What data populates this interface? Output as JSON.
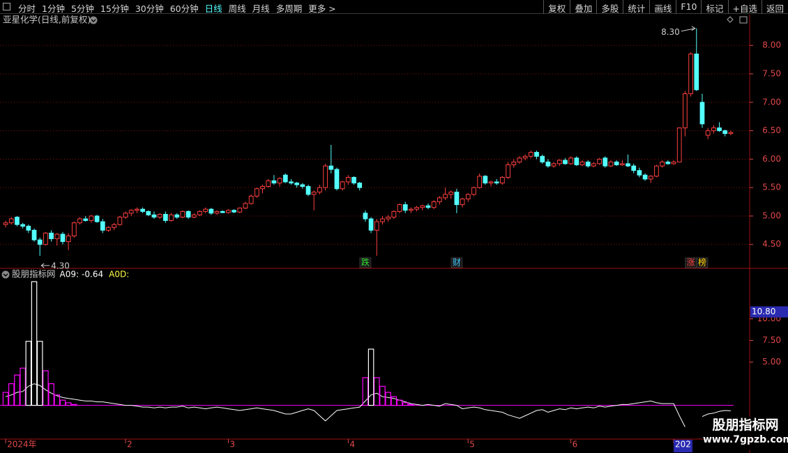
{
  "toolbar": {
    "left": [
      "分时",
      "1分钟",
      "5分钟",
      "15分钟",
      "30分钟",
      "60分钟",
      "日线",
      "周线",
      "月线",
      "多周期",
      "更多 >"
    ],
    "active": "日线",
    "right": [
      "复权",
      "叠加",
      "多股",
      "统计",
      "画线",
      "F10",
      "标记",
      "+自选",
      "返回"
    ]
  },
  "watermark": {
    "title": "股朋指标网",
    "url": "www.7gpzb.com"
  },
  "chart_data": [
    {
      "type": "candlestick",
      "title": "亚星化学(日线,前复权)",
      "up_color": "#ff4040",
      "down_color": "#54ffff",
      "categories": [
        "2024年",
        null,
        null,
        null,
        null,
        null,
        null,
        null,
        null,
        null,
        null,
        null,
        null,
        null,
        null,
        null,
        null,
        null,
        null,
        null,
        null,
        "2",
        null,
        null,
        null,
        null,
        null,
        null,
        null,
        null,
        null,
        null,
        null,
        null,
        null,
        null,
        null,
        null,
        null,
        "3",
        null,
        null,
        null,
        null,
        null,
        null,
        null,
        null,
        null,
        null,
        null,
        null,
        null,
        null,
        null,
        null,
        null,
        null,
        null,
        null,
        "4",
        null,
        null,
        null,
        null,
        null,
        null,
        null,
        null,
        null,
        null,
        null,
        null,
        null,
        null,
        null,
        null,
        null,
        null,
        null,
        null,
        "5",
        null,
        null,
        null,
        null,
        null,
        null,
        null,
        null,
        null,
        null,
        null,
        null,
        null,
        null,
        null,
        null,
        null,
        "6",
        null,
        null,
        null,
        null,
        null,
        null,
        null,
        null,
        null,
        null,
        null,
        null,
        null,
        null,
        null,
        null,
        null,
        "202",
        null,
        null,
        null,
        null,
        null,
        null,
        null,
        null,
        null,
        null
      ],
      "open": [
        4.85,
        4.88,
        4.98,
        4.85,
        4.82,
        4.75,
        4.58,
        4.5,
        4.7,
        4.6,
        4.68,
        4.55,
        4.65,
        4.88,
        4.95,
        4.92,
        5.0,
        4.9,
        4.75,
        4.8,
        4.85,
        4.98,
        5.05,
        5.1,
        5.12,
        5.08,
        5.02,
        4.98,
        5.03,
        4.92,
        5.02,
        4.98,
        5.08,
        4.98,
        5.02,
        5.08,
        5.12,
        5.05,
        5.08,
        5.06,
        5.1,
        5.07,
        5.14,
        5.22,
        5.35,
        5.48,
        5.52,
        5.62,
        5.58,
        5.72,
        5.6,
        5.58,
        5.55,
        5.52,
        5.38,
        5.42,
        5.5,
        5.88,
        5.82,
        5.48,
        5.6,
        5.68,
        5.58,
        5.05,
        4.95,
        4.75,
        4.9,
        4.95,
        4.98,
        5.08,
        5.2,
        5.1,
        5.12,
        5.15,
        5.18,
        5.15,
        5.25,
        5.32,
        5.38,
        5.42,
        5.2,
        5.3,
        5.38,
        5.5,
        5.7,
        5.58,
        5.6,
        5.58,
        5.68,
        5.9,
        5.95,
        6.02,
        6.05,
        6.12,
        6.05,
        5.95,
        5.88,
        5.92,
        5.98,
        5.92,
        6.02,
        5.9,
        5.95,
        5.88,
        5.92,
        6.02,
        5.88,
        5.95,
        5.9,
        5.92,
        5.88,
        5.8,
        5.72,
        5.65,
        5.7,
        5.88,
        5.95,
        5.92,
        5.95,
        6.55,
        7.15,
        7.85,
        7.0,
        6.42,
        6.5,
        6.55,
        6.5,
        6.45
      ],
      "high": [
        4.92,
        4.98,
        5.0,
        4.88,
        4.85,
        4.78,
        4.62,
        4.72,
        4.75,
        4.7,
        4.72,
        4.7,
        4.9,
        4.98,
        5.0,
        5.02,
        5.02,
        4.95,
        4.82,
        4.88,
        5.0,
        5.08,
        5.12,
        5.15,
        5.15,
        5.1,
        5.08,
        5.05,
        5.08,
        5.05,
        5.05,
        5.1,
        5.1,
        5.05,
        5.1,
        5.15,
        5.14,
        5.1,
        5.1,
        5.12,
        5.12,
        5.15,
        5.25,
        5.38,
        5.5,
        5.55,
        5.65,
        5.72,
        5.68,
        5.75,
        5.65,
        5.6,
        5.58,
        5.55,
        5.45,
        5.55,
        5.92,
        6.25,
        5.85,
        5.62,
        5.72,
        5.7,
        5.6,
        5.1,
        4.98,
        4.95,
        5.0,
        5.02,
        5.1,
        5.22,
        5.25,
        5.15,
        5.18,
        5.2,
        5.22,
        5.28,
        5.35,
        5.5,
        5.45,
        5.48,
        5.32,
        5.4,
        5.52,
        5.75,
        5.72,
        5.62,
        5.65,
        5.7,
        5.95,
        6.0,
        6.05,
        6.08,
        6.15,
        6.15,
        6.08,
        6.0,
        5.95,
        6.0,
        6.02,
        6.05,
        6.05,
        5.98,
        5.98,
        5.95,
        6.02,
        6.05,
        5.98,
        5.98,
        5.98,
        6.08,
        5.92,
        5.85,
        5.75,
        5.72,
        5.9,
        5.98,
        5.98,
        5.98,
        6.55,
        7.2,
        7.88,
        8.3,
        7.15,
        6.55,
        6.6,
        6.65,
        6.52,
        6.5
      ],
      "low": [
        4.8,
        4.85,
        4.82,
        4.78,
        4.7,
        4.55,
        4.3,
        4.48,
        4.55,
        4.48,
        4.5,
        4.4,
        4.62,
        4.85,
        4.9,
        4.88,
        4.88,
        4.7,
        4.72,
        4.75,
        4.83,
        4.95,
        5.0,
        5.05,
        5.05,
        5.0,
        4.95,
        4.95,
        4.88,
        4.9,
        4.95,
        4.96,
        4.95,
        4.96,
        5.0,
        5.05,
        5.02,
        5.02,
        5.05,
        5.04,
        5.05,
        5.05,
        5.12,
        5.2,
        5.32,
        5.4,
        5.5,
        5.55,
        5.52,
        5.58,
        5.55,
        5.5,
        5.48,
        5.35,
        5.1,
        5.38,
        5.45,
        5.75,
        5.45,
        5.45,
        5.55,
        5.55,
        5.45,
        4.9,
        4.7,
        4.3,
        4.85,
        4.9,
        4.95,
        5.05,
        5.05,
        5.05,
        5.08,
        5.1,
        5.12,
        5.12,
        5.2,
        5.28,
        5.3,
        5.05,
        5.15,
        5.25,
        5.35,
        5.48,
        5.55,
        5.52,
        5.55,
        5.55,
        5.65,
        5.85,
        5.92,
        5.98,
        6.02,
        6.0,
        5.92,
        5.85,
        5.85,
        5.88,
        5.9,
        5.9,
        5.88,
        5.88,
        5.85,
        5.86,
        5.9,
        5.85,
        5.86,
        5.88,
        5.88,
        5.86,
        5.75,
        5.68,
        5.62,
        5.58,
        5.68,
        5.85,
        5.9,
        5.9,
        5.95,
        6.4,
        7.1,
        7.2,
        6.55,
        6.35,
        6.45,
        6.48,
        6.4,
        6.42
      ],
      "close": [
        4.88,
        4.95,
        4.85,
        4.82,
        4.75,
        4.58,
        4.5,
        4.7,
        4.6,
        4.68,
        4.55,
        4.65,
        4.88,
        4.95,
        4.92,
        5.0,
        4.9,
        4.75,
        4.8,
        4.85,
        4.98,
        5.05,
        5.1,
        5.12,
        5.08,
        5.02,
        4.98,
        5.03,
        4.92,
        5.02,
        4.98,
        5.08,
        4.98,
        5.02,
        5.08,
        5.12,
        5.05,
        5.08,
        5.06,
        5.1,
        5.07,
        5.14,
        5.22,
        5.35,
        5.48,
        5.52,
        5.62,
        5.58,
        5.66,
        5.6,
        5.58,
        5.55,
        5.52,
        5.38,
        5.42,
        5.5,
        5.88,
        5.82,
        5.48,
        5.6,
        5.68,
        5.58,
        5.5,
        4.95,
        4.75,
        4.9,
        4.95,
        4.98,
        5.08,
        5.2,
        5.1,
        5.12,
        5.15,
        5.18,
        5.15,
        5.25,
        5.32,
        5.38,
        5.42,
        5.2,
        5.3,
        5.38,
        5.5,
        5.7,
        5.58,
        5.6,
        5.58,
        5.68,
        5.9,
        5.95,
        6.02,
        6.05,
        6.12,
        6.05,
        5.95,
        5.88,
        5.92,
        5.98,
        5.92,
        6.02,
        5.9,
        5.95,
        5.88,
        5.92,
        6.0,
        5.88,
        5.95,
        5.9,
        5.92,
        5.88,
        5.8,
        5.72,
        5.65,
        5.7,
        5.88,
        5.95,
        5.92,
        5.95,
        6.55,
        7.15,
        7.85,
        7.22,
        6.62,
        6.5,
        6.55,
        6.5,
        6.45,
        6.47
      ],
      "signals": [
        null,
        null,
        null,
        null,
        null,
        null,
        null,
        null,
        null,
        null,
        null,
        null,
        null,
        null,
        null,
        null,
        null,
        null,
        null,
        null,
        null,
        null,
        null,
        null,
        null,
        null,
        null,
        null,
        null,
        null,
        null,
        null,
        null,
        null,
        null,
        null,
        null,
        null,
        null,
        null,
        null,
        null,
        null,
        null,
        null,
        null,
        null,
        null,
        null,
        null,
        null,
        null,
        null,
        null,
        null,
        null,
        null,
        null,
        null,
        null,
        null,
        null,
        null,
        "跌",
        null,
        null,
        null,
        null,
        null,
        null,
        null,
        null,
        null,
        null,
        null,
        null,
        null,
        null,
        null,
        "财",
        null,
        null,
        null,
        null,
        null,
        null,
        null,
        null,
        null,
        null,
        null,
        null,
        null,
        null,
        null,
        null,
        null,
        null,
        null,
        null,
        null,
        null,
        null,
        null,
        null,
        null,
        null,
        null,
        null,
        null,
        null,
        null,
        null,
        null,
        null,
        null,
        null,
        null,
        null,
        null,
        "涨",
        null,
        "榜",
        null,
        null,
        null,
        null,
        null
      ],
      "extremes": [
        {
          "value": 8.3,
          "label": "8.30"
        },
        {
          "value": 4.3,
          "label": "4.30"
        }
      ],
      "ylim": [
        4.08,
        8.37
      ],
      "yticks": [
        {
          "value": 4.5,
          "label": "4.50"
        },
        {
          "value": 5,
          "label": "5.00"
        },
        {
          "value": 5.5,
          "label": "5.50"
        },
        {
          "value": 6,
          "label": "6.00"
        },
        {
          "value": 6.5,
          "label": "6.50"
        },
        {
          "value": 7,
          "label": "7.00"
        },
        {
          "value": 7.5,
          "label": "7.50"
        },
        {
          "value": 8,
          "label": "8.00"
        }
      ],
      "grid": true
    },
    {
      "type": "combo",
      "title": "股朋指标网",
      "series": [
        {
          "name": "A09",
          "type": "line",
          "color": "#ffffff",
          "values": [
            1.0,
            1.2,
            1.5,
            1.6,
            2.2,
            2.5,
            2.3,
            1.8,
            1.4,
            1.1,
            0.9,
            0.8,
            0.7,
            0.6,
            0.5,
            0.5,
            0.4,
            0.4,
            0.3,
            0.2,
            0.1,
            0,
            0,
            -0.1,
            -0.2,
            -0.2,
            -0.3,
            -0.2,
            -0.3,
            -0.2,
            -0.2,
            -0.1,
            -0.3,
            -0.2,
            -0.3,
            -0.4,
            -0.3,
            -0.2,
            -0.3,
            -0.4,
            -0.5,
            -0.6,
            -0.5,
            -0.4,
            -0.3,
            -0.4,
            -0.5,
            -0.6,
            -0.8,
            -1.0,
            -1.0,
            -0.8,
            -0.6,
            -0.4,
            -0.6,
            -1.2,
            -1.8,
            -1.2,
            -0.6,
            -0.5,
            -0.4,
            -0.3,
            -0.2,
            0.5,
            1.2,
            1.4,
            1.0,
            0.9,
            0.8,
            0.6,
            0.4,
            0.2,
            0.1,
            0,
            0.1,
            0,
            -0.1,
            0.2,
            0.1,
            0,
            -0.4,
            -0.3,
            -0.2,
            -0.3,
            -0.5,
            -0.6,
            -0.7,
            -0.8,
            -1.1,
            -1.3,
            -1.5,
            -1.2,
            -0.9,
            -0.6,
            -0.5,
            -0.8,
            -0.6,
            -0.4,
            -0.5,
            -0.3,
            -0.4,
            -0.3,
            -0.2,
            -0.3,
            -0.1,
            -0.2,
            -0.1,
            0,
            0.1,
            0.1,
            0.2,
            0.3,
            0.4,
            0.5,
            0.3,
            0.2,
            0.2,
            0.2,
            -1.2,
            -2.5,
            null,
            null,
            -1.3,
            -1.0,
            -0.9,
            -0.7,
            -0.6,
            -0.64
          ]
        },
        {
          "name": "A0D",
          "type": "bar",
          "color": "#ff00ff",
          "values": [
            1.5,
            2.5,
            3.5,
            4.3,
            null,
            null,
            null,
            4.0,
            2.5,
            1.2,
            0.6,
            0.3,
            0.1,
            0,
            0,
            0,
            0,
            0,
            0,
            0,
            0,
            0,
            0,
            0,
            0,
            0,
            0,
            0,
            0,
            0,
            0,
            0,
            0,
            0,
            0,
            0,
            0,
            0,
            0,
            0,
            0,
            0,
            0,
            0,
            0,
            0,
            0,
            0,
            0,
            0,
            0,
            0,
            0,
            0,
            0,
            0,
            0,
            0,
            0,
            0,
            0,
            0,
            0,
            3.2,
            null,
            3.2,
            2.2,
            1.5,
            1.0,
            0.6,
            0.3,
            0.1,
            0,
            0,
            0,
            0,
            0,
            0,
            0,
            0,
            0,
            0,
            0,
            0,
            0,
            0,
            0,
            0,
            0,
            0,
            0,
            0,
            0,
            0,
            0,
            0,
            0,
            0,
            0,
            0,
            0,
            0,
            0,
            0,
            0,
            0,
            0,
            0,
            0,
            0,
            0,
            0,
            0,
            0,
            0,
            0,
            0,
            0,
            0,
            0,
            0,
            0,
            0,
            0,
            0,
            0,
            0,
            0
          ]
        },
        {
          "type": "bar",
          "color": "#ffffff",
          "values": [
            null,
            null,
            null,
            null,
            7.4,
            14.3,
            7.4,
            null,
            null,
            null,
            null,
            null,
            null,
            null,
            null,
            null,
            null,
            null,
            null,
            null,
            null,
            null,
            null,
            null,
            null,
            null,
            null,
            null,
            null,
            null,
            null,
            null,
            null,
            null,
            null,
            null,
            null,
            null,
            null,
            null,
            null,
            null,
            null,
            null,
            null,
            null,
            null,
            null,
            null,
            null,
            null,
            null,
            null,
            null,
            null,
            null,
            null,
            null,
            null,
            null,
            null,
            null,
            null,
            null,
            6.5,
            null,
            null,
            null,
            null,
            null,
            null,
            null,
            null,
            null,
            null,
            null,
            null,
            null,
            null,
            null,
            null,
            null,
            null,
            null,
            null,
            null,
            null,
            null,
            null,
            null,
            null,
            null,
            null,
            null,
            null,
            null,
            null,
            null,
            null,
            null,
            null,
            null,
            null,
            null,
            null,
            null,
            null,
            null,
            null,
            null,
            null,
            null,
            null,
            null,
            null,
            null,
            null,
            null,
            null,
            null,
            null,
            null,
            null,
            null,
            null,
            null,
            null,
            null
          ]
        }
      ],
      "ylim": [
        -3.9,
        15.6
      ],
      "yticks": [
        {
          "value": 5,
          "label": "5.00"
        },
        {
          "value": 7.5,
          "label": "7.50"
        },
        {
          "value": 10,
          "label": "10.00"
        }
      ],
      "cursor_label": {
        "value": 10.8,
        "label": "10.80"
      }
    }
  ]
}
